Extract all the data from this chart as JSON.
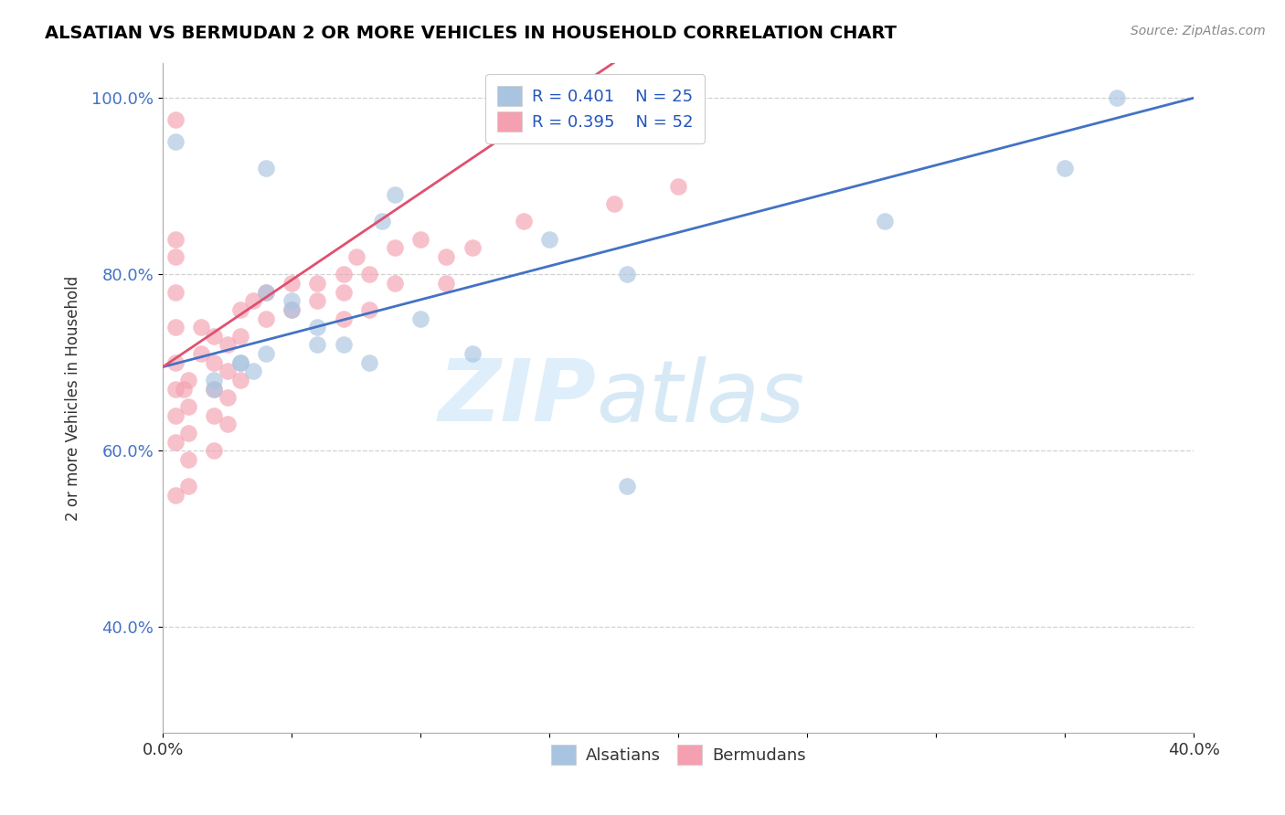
{
  "title": "ALSATIAN VS BERMUDAN 2 OR MORE VEHICLES IN HOUSEHOLD CORRELATION CHART",
  "source": "Source: ZipAtlas.com",
  "ylabel": "2 or more Vehicles in Household",
  "xlabel": "",
  "xlim": [
    0.0,
    0.4
  ],
  "ylim": [
    0.28,
    1.04
  ],
  "ytick_labels": [
    "40.0%",
    "60.0%",
    "80.0%",
    "100.0%"
  ],
  "ytick_values": [
    0.4,
    0.6,
    0.8,
    1.0
  ],
  "alsatian_color": "#a8c4e0",
  "bermudan_color": "#f4a0b0",
  "alsatian_line_color": "#4472c4",
  "bermudan_line_color": "#e05070",
  "legend_R_alsatian": "R = 0.401",
  "legend_N_alsatian": "N = 25",
  "legend_R_bermudan": "R = 0.395",
  "legend_N_bermudan": "N = 52",
  "watermark_zip": "ZIP",
  "watermark_atlas": "atlas",
  "alsatian_line": [
    0.0,
    0.695,
    0.4,
    1.0
  ],
  "bermudan_line": [
    0.0,
    0.695,
    0.175,
    1.04
  ],
  "alsatian_x": [
    0.005,
    0.04,
    0.09,
    0.085,
    0.15,
    0.18,
    0.04,
    0.05,
    0.05,
    0.06,
    0.06,
    0.07,
    0.04,
    0.03,
    0.03,
    0.035,
    0.02,
    0.02,
    0.37,
    0.28,
    0.1,
    0.08,
    0.12,
    0.35,
    0.18
  ],
  "alsatian_y": [
    0.95,
    0.92,
    0.89,
    0.86,
    0.84,
    0.8,
    0.78,
    0.77,
    0.76,
    0.74,
    0.72,
    0.72,
    0.71,
    0.7,
    0.7,
    0.69,
    0.68,
    0.67,
    1.0,
    0.86,
    0.75,
    0.7,
    0.71,
    0.92,
    0.56
  ],
  "bermudan_x": [
    0.005,
    0.005,
    0.005,
    0.005,
    0.005,
    0.005,
    0.005,
    0.005,
    0.005,
    0.005,
    0.008,
    0.01,
    0.01,
    0.01,
    0.01,
    0.01,
    0.015,
    0.015,
    0.02,
    0.02,
    0.02,
    0.02,
    0.02,
    0.025,
    0.025,
    0.025,
    0.025,
    0.03,
    0.03,
    0.03,
    0.035,
    0.04,
    0.04,
    0.05,
    0.05,
    0.06,
    0.06,
    0.07,
    0.07,
    0.07,
    0.075,
    0.08,
    0.08,
    0.09,
    0.09,
    0.1,
    0.11,
    0.11,
    0.12,
    0.14,
    0.175,
    0.2
  ],
  "bermudan_y": [
    0.975,
    0.84,
    0.82,
    0.78,
    0.74,
    0.7,
    0.67,
    0.64,
    0.61,
    0.55,
    0.67,
    0.68,
    0.65,
    0.62,
    0.59,
    0.56,
    0.74,
    0.71,
    0.73,
    0.7,
    0.67,
    0.64,
    0.6,
    0.72,
    0.69,
    0.66,
    0.63,
    0.76,
    0.73,
    0.68,
    0.77,
    0.78,
    0.75,
    0.79,
    0.76,
    0.79,
    0.77,
    0.8,
    0.78,
    0.75,
    0.82,
    0.8,
    0.76,
    0.83,
    0.79,
    0.84,
    0.82,
    0.79,
    0.83,
    0.86,
    0.88,
    0.9
  ]
}
